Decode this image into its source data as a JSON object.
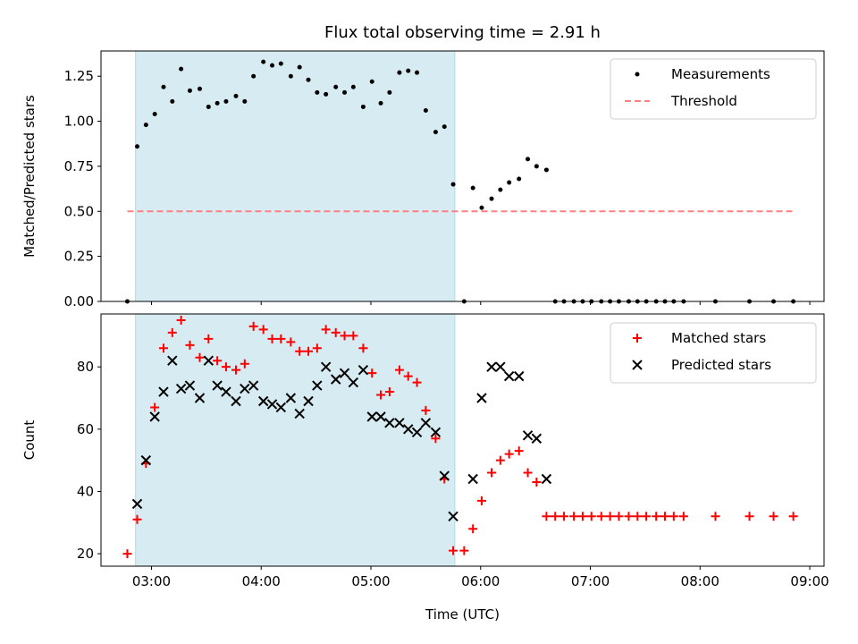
{
  "chart_data": [
    {
      "type": "scatter",
      "title": "Flux total observing time = 2.91 h",
      "xlabel": "",
      "ylabel": "Matched/Predicted stars",
      "x_unit": "time of day UTC (decimal hours)",
      "xlim": [
        2.54,
        9.13
      ],
      "ylim": [
        0,
        1.39
      ],
      "yticks": [
        "0.00",
        "0.25",
        "0.50",
        "0.75",
        "1.00",
        "1.25"
      ],
      "ytick_values": [
        0,
        0.25,
        0.5,
        0.75,
        1.0,
        1.25
      ],
      "x_tick_values": [
        3,
        4,
        5,
        6,
        7,
        8,
        9
      ],
      "show_x_tick_labels": false,
      "grid": false,
      "legend_position": "upper right",
      "shaded_interval": {
        "x": [
          2.855,
          5.765
        ],
        "color": "#add8e6"
      },
      "series": [
        {
          "name": "Measurements",
          "marker": "dot",
          "color": "#000000",
          "x": [
            2.78,
            2.87,
            2.95,
            3.03,
            3.11,
            3.19,
            3.27,
            3.35,
            3.44,
            3.52,
            3.6,
            3.68,
            3.77,
            3.85,
            3.93,
            4.02,
            4.1,
            4.18,
            4.27,
            4.35,
            4.43,
            4.51,
            4.59,
            4.68,
            4.76,
            4.84,
            4.93,
            5.01,
            5.09,
            5.17,
            5.26,
            5.34,
            5.42,
            5.5,
            5.59,
            5.67,
            5.75,
            5.85,
            5.93,
            6.01,
            6.1,
            6.18,
            6.26,
            6.35,
            6.43,
            6.51,
            6.6,
            6.68,
            6.76,
            6.85,
            6.93,
            7.01,
            7.1,
            7.18,
            7.26,
            7.35,
            7.43,
            7.51,
            7.6,
            7.68,
            7.76,
            7.85,
            8.14,
            8.45,
            8.67,
            8.85
          ],
          "y": [
            0.0,
            0.86,
            0.98,
            1.04,
            1.19,
            1.11,
            1.29,
            1.17,
            1.18,
            1.08,
            1.1,
            1.11,
            1.14,
            1.11,
            1.25,
            1.33,
            1.31,
            1.32,
            1.25,
            1.3,
            1.23,
            1.16,
            1.15,
            1.19,
            1.16,
            1.19,
            1.08,
            1.22,
            1.1,
            1.16,
            1.27,
            1.28,
            1.27,
            1.06,
            0.94,
            0.97,
            0.65,
            0.0,
            0.63,
            0.52,
            0.57,
            0.62,
            0.66,
            0.68,
            0.79,
            0.75,
            0.73,
            0.0,
            0.0,
            0.0,
            0.0,
            0.0,
            0.0,
            0.0,
            0.0,
            0.0,
            0.0,
            0.0,
            0.0,
            0.0,
            0.0,
            0.0,
            0.0,
            0.0,
            0.0,
            0.0
          ]
        },
        {
          "name": "Threshold",
          "marker": "dashed-line",
          "color": "#ff8080",
          "x": [
            2.78,
            8.85
          ],
          "y": [
            0.5,
            0.5
          ]
        }
      ]
    },
    {
      "type": "scatter",
      "title": "",
      "xlabel": "Time (UTC)",
      "ylabel": "Count",
      "x_unit": "time of day UTC (decimal hours)",
      "xlim": [
        2.54,
        9.13
      ],
      "ylim": [
        16,
        97
      ],
      "yticks": [
        "20",
        "40",
        "60",
        "80"
      ],
      "ytick_values": [
        20,
        40,
        60,
        80
      ],
      "x_tick_values": [
        3,
        4,
        5,
        6,
        7,
        8,
        9
      ],
      "xticks": [
        "03:00",
        "04:00",
        "05:00",
        "06:00",
        "07:00",
        "08:00",
        "09:00"
      ],
      "grid": false,
      "legend_position": "upper right",
      "shaded_interval": {
        "x": [
          2.855,
          5.765
        ],
        "color": "#add8e6"
      },
      "series": [
        {
          "name": "Matched stars",
          "marker": "plus",
          "color": "#ff0000",
          "x": [
            2.78,
            2.87,
            2.95,
            3.03,
            3.11,
            3.19,
            3.27,
            3.35,
            3.44,
            3.52,
            3.6,
            3.68,
            3.77,
            3.85,
            3.93,
            4.02,
            4.1,
            4.18,
            4.27,
            4.35,
            4.43,
            4.51,
            4.59,
            4.68,
            4.76,
            4.84,
            4.93,
            5.01,
            5.09,
            5.17,
            5.26,
            5.34,
            5.42,
            5.5,
            5.59,
            5.67,
            5.75,
            5.85,
            5.93,
            6.01,
            6.1,
            6.18,
            6.26,
            6.35,
            6.43,
            6.51,
            6.6,
            6.68,
            6.76,
            6.85,
            6.93,
            7.01,
            7.1,
            7.18,
            7.26,
            7.35,
            7.43,
            7.51,
            7.6,
            7.68,
            7.76,
            7.85,
            8.14,
            8.45,
            8.67,
            8.85
          ],
          "y": [
            20,
            31,
            49,
            67,
            86,
            91,
            95,
            87,
            83,
            89,
            82,
            80,
            79,
            81,
            93,
            92,
            89,
            89,
            88,
            85,
            85,
            86,
            92,
            91,
            90,
            90,
            86,
            78,
            71,
            72,
            79,
            77,
            75,
            66,
            57,
            44,
            21,
            21,
            28,
            37,
            46,
            50,
            52,
            53,
            46,
            43,
            32,
            32,
            32,
            32,
            32,
            32,
            32,
            32,
            32,
            32,
            32,
            32,
            32,
            32,
            32,
            32,
            32,
            32,
            32,
            32
          ]
        },
        {
          "name": "Predicted stars",
          "marker": "x",
          "color": "#000000",
          "x": [
            2.87,
            2.95,
            3.03,
            3.11,
            3.19,
            3.27,
            3.35,
            3.44,
            3.52,
            3.6,
            3.68,
            3.77,
            3.85,
            3.93,
            4.02,
            4.1,
            4.18,
            4.27,
            4.35,
            4.43,
            4.51,
            4.59,
            4.68,
            4.76,
            4.84,
            4.93,
            5.01,
            5.09,
            5.17,
            5.26,
            5.34,
            5.42,
            5.5,
            5.59,
            5.67,
            5.75,
            5.93,
            6.01,
            6.1,
            6.18,
            6.26,
            6.35,
            6.43,
            6.51,
            6.6
          ],
          "y": [
            36,
            50,
            64,
            72,
            82,
            73,
            74,
            70,
            82,
            74,
            72,
            69,
            73,
            74,
            69,
            68,
            67,
            70,
            65,
            69,
            74,
            80,
            76,
            78,
            75,
            79,
            64,
            64,
            62,
            62,
            60,
            59,
            62,
            59,
            45,
            32,
            44,
            70,
            80,
            80,
            77,
            77,
            58,
            57,
            44
          ]
        }
      ]
    }
  ]
}
